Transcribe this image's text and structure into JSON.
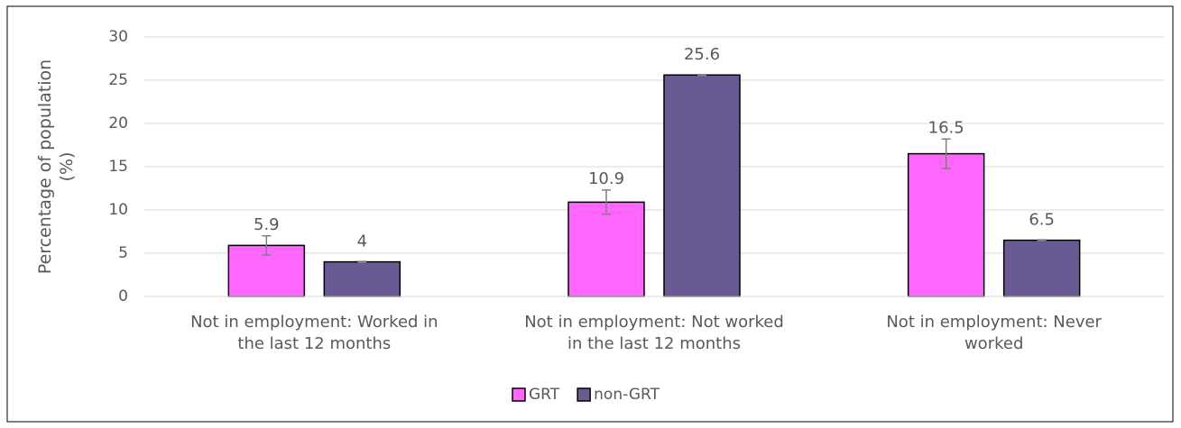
{
  "chart_data": {
    "type": "bar",
    "y_label": "Percentage of population (%)",
    "categories": [
      "Not in employment: Worked in the last 12 months",
      "Not in employment: Not worked in the last 12 months",
      "Not in employment: Never worked"
    ],
    "series": [
      {
        "name": "GRT",
        "color": "#ff66ff",
        "values": [
          5.9,
          10.9,
          16.5
        ],
        "errors": [
          1.1,
          1.4,
          1.7
        ]
      },
      {
        "name": "non-GRT",
        "color": "#6a5a94",
        "values": [
          4,
          25.6,
          6.5
        ],
        "errors": [
          0.05,
          0.05,
          0.05
        ]
      }
    ],
    "ylim": [
      0,
      30
    ],
    "yticks": [
      0,
      5,
      10,
      15,
      20,
      25,
      30
    ],
    "grid": true,
    "legend": "bottom"
  }
}
